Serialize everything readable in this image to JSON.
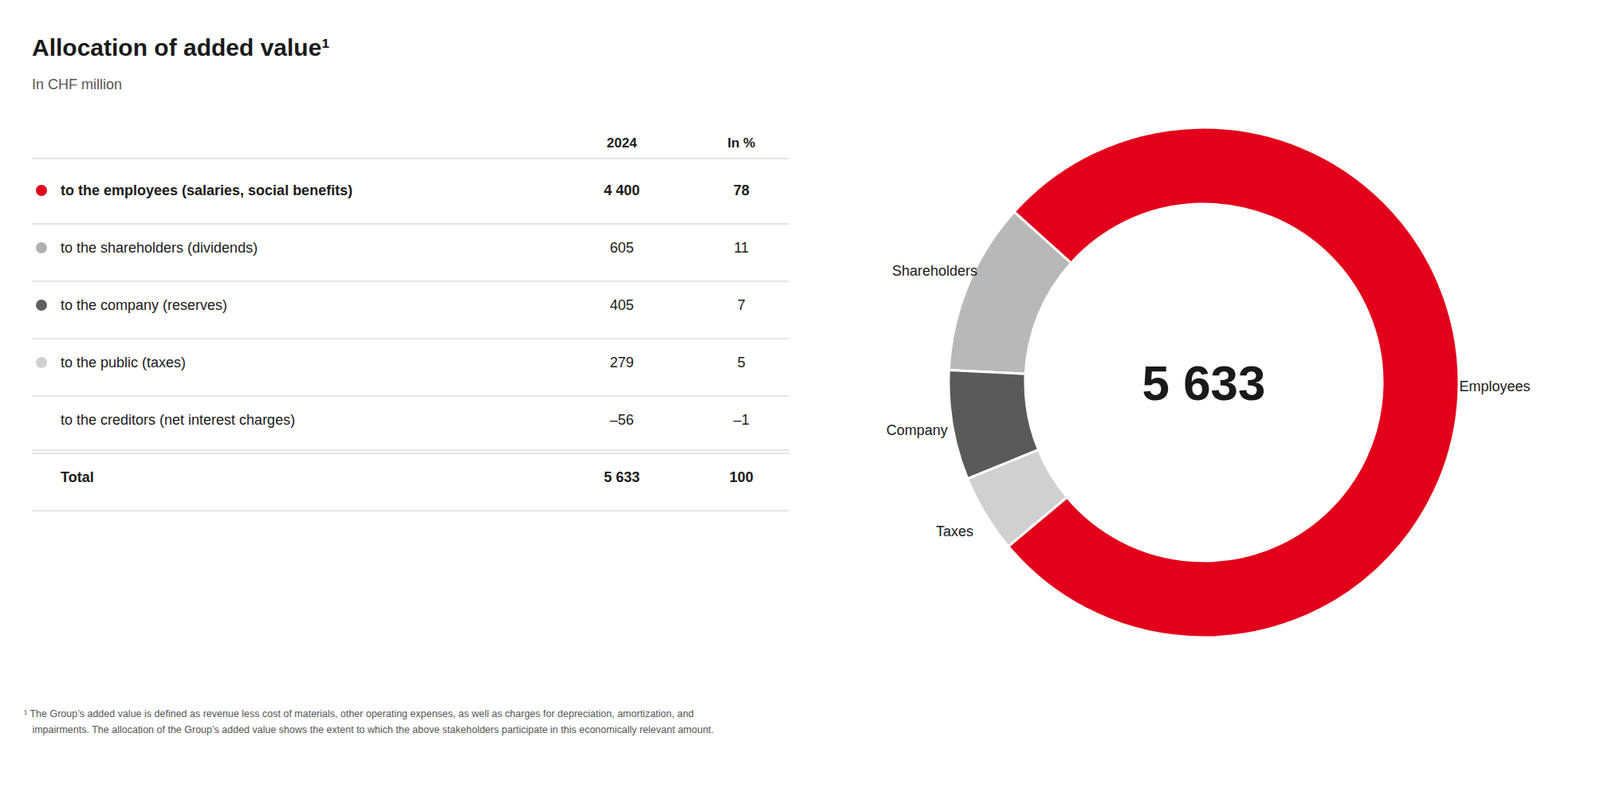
{
  "chart_data": {
    "type": "pie",
    "title": "Allocation of added value¹",
    "subtitle": "In CHF million",
    "categories": [
      "Employees",
      "Shareholders",
      "Company",
      "Taxes"
    ],
    "values": [
      78,
      11,
      7,
      5
    ],
    "colors": [
      "#e2001a",
      "#b8b8b8",
      "#5a5a5a",
      "#d0d0d0"
    ],
    "center_label": {
      "value": 5633,
      "label": "5 633"
    },
    "table": {
      "columns": [
        "2024",
        "In %"
      ],
      "rows": [
        {
          "label": "to the employees (salaries, social benefits)",
          "value": {
            "value": 4400,
            "label": "4 400"
          },
          "pct": 78,
          "color": "#e2001a"
        },
        {
          "label": "to the shareholders (dividends)",
          "value": 605,
          "pct": 11,
          "color": "#b0b0b0"
        },
        {
          "label": "to the company (reserves)",
          "value": 405,
          "pct": 7,
          "color": "#606060"
        },
        {
          "label": "to the public (taxes)",
          "value": 279,
          "pct": 5,
          "color": "#d0d0d0"
        },
        {
          "label": "to the creditors (net interest charges)",
          "value": {
            "value": -56,
            "label": "–56"
          },
          "pct": {
            "value": -1,
            "label": "–1"
          }
        },
        {
          "label": "Total",
          "value": {
            "value": 5633,
            "label": "5 633"
          },
          "pct": 100
        }
      ]
    },
    "footnote": [
      "¹ The Group’s added value is defined as revenue less cost of materials, other operating expenses, as well as charges for depreciation, amortization, and",
      "   impairments. The allocation of the Group’s added value shows the extent to which the above stakeholders participate in this economically relevant amount."
    ],
    "data_labels": false,
    "legend": false
  }
}
